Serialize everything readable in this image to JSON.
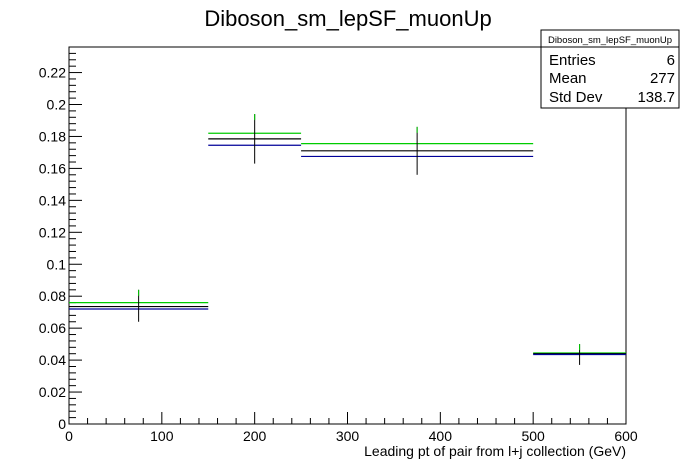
{
  "chart_data": {
    "type": "histogram",
    "title": "Diboson_sm_lepSF_muonUp",
    "xlabel": "Leading pt of pair from l+j collection (GeV)",
    "ylabel": "",
    "xlim": [
      0,
      600
    ],
    "ylim": [
      0,
      0.236
    ],
    "xticks": [
      0,
      100,
      200,
      300,
      400,
      500,
      600
    ],
    "yticks": [
      0,
      0.02,
      0.04,
      0.06,
      0.08,
      0.1,
      0.12,
      0.14,
      0.16,
      0.18,
      0.2,
      0.22
    ],
    "bins": [
      {
        "x_low": 0,
        "x_high": 150,
        "center": 75
      },
      {
        "x_low": 150,
        "x_high": 250,
        "center": 200
      },
      {
        "x_low": 250,
        "x_high": 500,
        "center": 375
      },
      {
        "x_low": 500,
        "x_high": 600,
        "center": 550
      }
    ],
    "series": [
      {
        "color": "#00cc00",
        "values": [
          0.076,
          0.182,
          0.1755,
          0.0445
        ]
      },
      {
        "color": "#000000",
        "values": [
          0.0735,
          0.1785,
          0.171,
          0.044
        ]
      },
      {
        "color": "#000099",
        "values": [
          0.072,
          0.1745,
          0.1675,
          0.0435
        ]
      }
    ],
    "errors": [
      {
        "center": 75,
        "low": 0.064,
        "high": 0.084
      },
      {
        "center": 200,
        "low": 0.163,
        "high": 0.194
      },
      {
        "center": 375,
        "low": 0.156,
        "high": 0.186
      },
      {
        "center": 550,
        "low": 0.037,
        "high": 0.05
      }
    ],
    "grid": false,
    "legend": "none"
  },
  "stats": {
    "title": "Diboson_sm_lepSF_muonUp",
    "rows": [
      {
        "label": "Entries",
        "value": "6"
      },
      {
        "label": "Mean",
        "value": "277"
      },
      {
        "label": "Std Dev",
        "value": "138.7"
      }
    ]
  }
}
